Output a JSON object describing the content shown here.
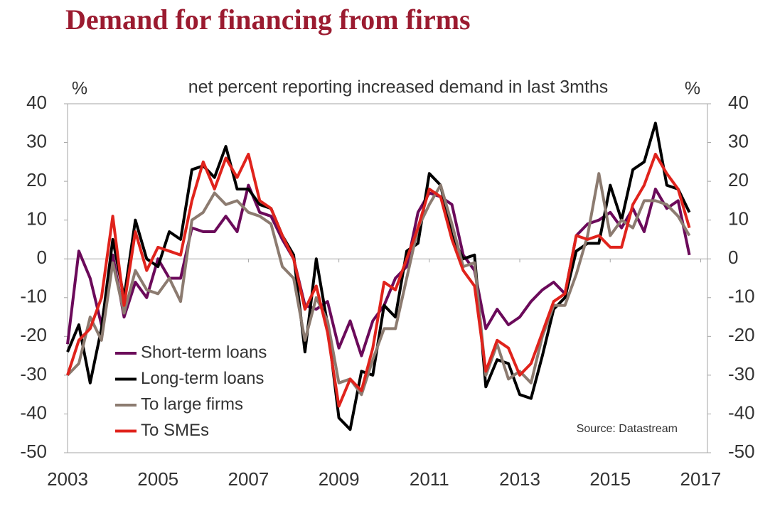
{
  "chart_data": {
    "type": "line",
    "title": "Demand for financing from firms",
    "subtitle": "net percent reporting increased demand in last 3mths",
    "y_label": "%",
    "y2_label": "%",
    "annotation": "Source: Datastream",
    "x": [
      2003,
      2003.25,
      2003.5,
      2003.75,
      2004,
      2004.25,
      2004.5,
      2004.75,
      2005,
      2005.25,
      2005.5,
      2005.75,
      2006,
      2006.25,
      2006.5,
      2006.75,
      2007,
      2007.25,
      2007.5,
      2007.75,
      2008,
      2008.25,
      2008.5,
      2008.75,
      2009,
      2009.25,
      2009.5,
      2009.75,
      2010,
      2010.25,
      2010.5,
      2010.75,
      2011,
      2011.25,
      2011.5,
      2011.75,
      2012,
      2012.25,
      2012.5,
      2012.75,
      2013,
      2013.25,
      2013.5,
      2013.75,
      2014,
      2014.25,
      2014.5,
      2014.75,
      2015,
      2015.25,
      2015.5,
      2015.75,
      2016,
      2016.25,
      2016.5,
      2016.75
    ],
    "series": [
      {
        "name": "Short-term loans",
        "color": "#6b0a5a",
        "values": [
          -22,
          2,
          -5,
          -17,
          1,
          -15,
          -6,
          -10,
          0,
          -5,
          -5,
          8,
          7,
          7,
          11,
          7,
          19,
          12,
          11,
          5,
          0,
          -12,
          -13,
          -11,
          -23,
          -16,
          -25,
          -16,
          -12,
          -5,
          -2,
          12,
          17,
          16,
          14,
          1,
          -3,
          -18,
          -13,
          -17,
          -15,
          -11,
          -8,
          -6,
          -9,
          6,
          9,
          10,
          12,
          8,
          13,
          7,
          18,
          13,
          15,
          1
        ]
      },
      {
        "name": "Long-term loans",
        "color": "#000000",
        "values": [
          -24,
          -17,
          -32,
          -18,
          5,
          -10,
          10,
          0,
          -2,
          7,
          5,
          23,
          24,
          21,
          29,
          18,
          18,
          14,
          13,
          6,
          1,
          -24,
          0,
          -17,
          -41,
          -44,
          -29,
          -30,
          -12,
          -15,
          2,
          4,
          22,
          19,
          6,
          0,
          1,
          -33,
          -26,
          -27,
          -35,
          -36,
          -25,
          -13,
          -10,
          2,
          4,
          4,
          19,
          10,
          23,
          25,
          35,
          19,
          18,
          12
        ]
      },
      {
        "name": "To large firms",
        "color": "#8c7b70",
        "values": [
          -30,
          -27,
          -15,
          -21,
          -1,
          -14,
          -3,
          -8,
          -9,
          -5,
          -11,
          10,
          12,
          17,
          14,
          15,
          12,
          11,
          9,
          -2,
          -5,
          -21,
          -10,
          -16,
          -32,
          -31,
          -35,
          -26,
          -18,
          -18,
          -5,
          8,
          14,
          19,
          9,
          -2,
          -1,
          -30,
          -22,
          -31,
          -29,
          -32,
          -20,
          -12,
          -12,
          -4,
          6,
          22,
          6,
          10,
          8,
          15,
          15,
          14,
          11,
          6
        ]
      },
      {
        "name": "To SMEs",
        "color": "#e0231c",
        "values": [
          -30,
          -21,
          -18,
          -10,
          11,
          -12,
          7,
          -3,
          3,
          2,
          1,
          15,
          25,
          18,
          26,
          21,
          27,
          15,
          13,
          6,
          0,
          -13,
          -7,
          -19,
          -38,
          -31,
          -34,
          -23,
          -6,
          -8,
          0,
          8,
          18,
          16,
          5,
          -3,
          -7,
          -29,
          -21,
          -23,
          -30,
          -27,
          -19,
          -11,
          -9,
          6,
          5,
          6,
          3,
          3,
          14,
          19,
          27,
          22,
          18,
          8
        ]
      }
    ],
    "xlim": [
      2003,
      2017.15
    ],
    "xticks": [
      2003,
      2005,
      2007,
      2009,
      2011,
      2013,
      2015,
      2017
    ],
    "ylim": [
      -50,
      40
    ],
    "yticks": [
      -50,
      -40,
      -30,
      -20,
      -10,
      0,
      10,
      20,
      30,
      40
    ],
    "y2lim": [
      -50,
      40
    ],
    "y2ticks": [
      -50,
      -40,
      -30,
      -20,
      -10,
      0,
      10,
      20,
      30,
      40
    ],
    "grid": false,
    "legend": "lower left"
  }
}
